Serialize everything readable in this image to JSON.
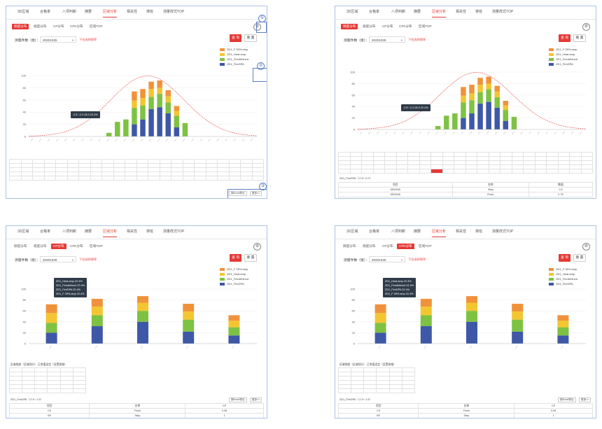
{
  "nav": [
    "3D区域",
    "合格率",
    "八项判断",
    "摘要",
    "区域分析",
    "相关性",
    "排班",
    "测量样式TOP"
  ],
  "nav_active": 4,
  "subtabs_a": [
    "频度分布",
    "规度分布",
    "CP分布",
    "CPK分布",
    "区域TOP"
  ],
  "subtabs_b": [
    "频度分布",
    "规度分布",
    "CP分布",
    "CPK分布",
    "区域TOP"
  ],
  "filter_label": "测量件数（批）：",
  "filter_value": "20201025",
  "hint": "下拉选择频率",
  "query_label": "查 询",
  "reset_label": "重 置",
  "export_label": "按Excel导出",
  "more_label": "更多>>",
  "legend": [
    {
      "label": "ZD1_F 35%.amp",
      "color": "#f0923b"
    },
    {
      "label": "ZD1_Heat.amp",
      "color": "#f3c631"
    },
    {
      "label": "ZD1_Feedehlund",
      "color": "#7ec243"
    },
    {
      "label": "ZD1_FireDPA",
      "color": "#3e58a7"
    }
  ],
  "callouts": [
    "①",
    "②",
    "③"
  ],
  "settings_icon": "⚙",
  "tooltip_dist": "-2.5~-2.0  28.3  22.4%",
  "tooltip_cp": [
    "ZD1_Heat.amp  22.4%",
    "ZD1_Feedehlund  22.4%",
    "ZD1_FireDPA  22.4%",
    "ZD1_F 35%.amp  22.4%"
  ],
  "table_caption": "区域频度（区域划分）  正常值设定（设置规格）",
  "info_caption_dist": "ZD1_FireDPA（-2.5~-2.0）",
  "info_caption_cp": "ZD1_FireDPA（-2.5~-1.5）",
  "info_dist": {
    "headers": [
      "项目",
      "名称",
      "数值"
    ],
    "rows": [
      [
        "6SIGMA",
        "Step",
        "0.6"
      ],
      [
        "6SIGMA",
        "Flush",
        "0.75"
      ]
    ]
  },
  "info_cp": {
    "headers": [
      "项目",
      "名称",
      "CP"
    ],
    "rows": [
      [
        "CK",
        "Flush",
        "0.98"
      ],
      [
        "BF",
        "Step",
        "1"
      ]
    ]
  },
  "chart_data": [
    {
      "type": "bar",
      "title": "",
      "ylim": [
        0,
        100
      ],
      "yticks": [
        0,
        20,
        40,
        60,
        80,
        100
      ],
      "categories": [
        "c1",
        "c2",
        "c3",
        "c4",
        "c5",
        "c6",
        "c7",
        "c8",
        "c9",
        "c10",
        "c11",
        "c12",
        "c13",
        "c14",
        "c15",
        "c16",
        "c17",
        "c18",
        "c19",
        "c20",
        "c21",
        "c22",
        "c23",
        "c24",
        "c25",
        "c26",
        "c27"
      ],
      "series": [
        {
          "name": "ZD1_FireDPA",
          "values": [
            0,
            0,
            0,
            0,
            0,
            0,
            0,
            0,
            0,
            0,
            0,
            0,
            20,
            28,
            45,
            48,
            38,
            15,
            0,
            0,
            0,
            0,
            0,
            0,
            0,
            0,
            0
          ]
        },
        {
          "name": "ZD1_Feedehlund",
          "values": [
            0,
            0,
            0,
            0,
            0,
            0,
            0,
            0,
            0,
            6,
            24,
            28,
            27,
            23,
            20,
            22,
            18,
            19,
            22,
            0,
            0,
            0,
            0,
            0,
            0,
            0,
            0
          ]
        },
        {
          "name": "ZD1_Heat.amp",
          "values": [
            0,
            0,
            0,
            0,
            0,
            0,
            0,
            0,
            0,
            0,
            0,
            0,
            12,
            12,
            13,
            10,
            10,
            8,
            0,
            0,
            0,
            0,
            0,
            0,
            0,
            0,
            0
          ]
        },
        {
          "name": "ZD1_F 35%.amp",
          "values": [
            0,
            0,
            0,
            0,
            0,
            0,
            0,
            0,
            0,
            0,
            0,
            0,
            15,
            15,
            12,
            12,
            10,
            8,
            0,
            0,
            0,
            0,
            0,
            0,
            0,
            0,
            0
          ]
        }
      ]
    },
    {
      "type": "bar",
      "title": "",
      "ylim": [
        0,
        100
      ],
      "yticks": [
        0,
        20,
        40,
        60,
        80,
        100
      ],
      "categories": [
        "g1",
        "g2",
        "g3",
        "g4",
        "g5"
      ],
      "series": [
        {
          "name": "ZD1_FireDPA",
          "values": [
            20,
            32,
            40,
            22,
            15
          ]
        },
        {
          "name": "ZD1_Feedehlund",
          "values": [
            18,
            20,
            20,
            22,
            15
          ]
        },
        {
          "name": "ZD1_Heat.amp",
          "values": [
            18,
            16,
            15,
            15,
            12
          ]
        },
        {
          "name": "ZD1_F 35%.amp",
          "values": [
            16,
            14,
            12,
            14,
            10
          ]
        }
      ]
    }
  ]
}
